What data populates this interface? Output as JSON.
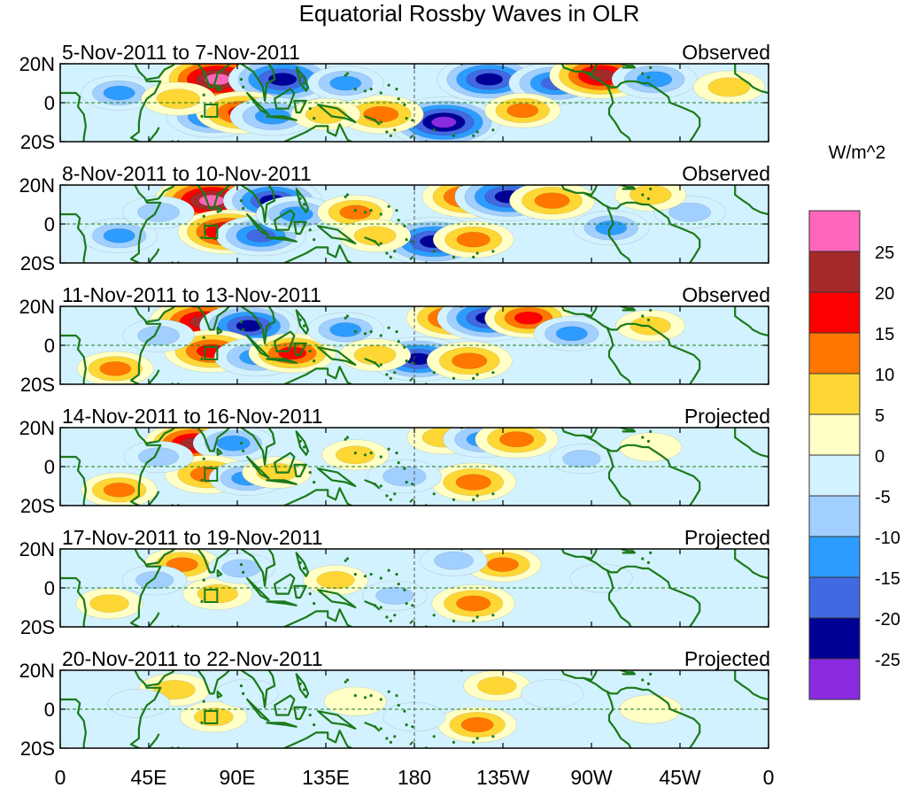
{
  "chart_data": {
    "type": "heatmap",
    "title": "Equatorial Rossby Waves in OLR",
    "colorbar": {
      "title": "W/m^2",
      "tick_labels": [
        "25",
        "20",
        "15",
        "10",
        "5",
        "0",
        "-5",
        "-10",
        "-15",
        "-20",
        "-25"
      ],
      "levels": [
        -25,
        -20,
        -15,
        -10,
        -5,
        0,
        5,
        10,
        15,
        20,
        25
      ],
      "colors_top_to_bottom": [
        "#ff66bb",
        "#a52a2a",
        "#ff0000",
        "#ff7700",
        "#ffd734",
        "#ffffc6",
        "#d3f2ff",
        "#a1cfff",
        "#2d9cff",
        "#4169e1",
        "#000096",
        "#8a2be2"
      ]
    },
    "x_axis": {
      "tick_labels": [
        "0",
        "45E",
        "90E",
        "135E",
        "180",
        "135W",
        "90W",
        "45W",
        "0"
      ],
      "range_deg_east": [
        0,
        360
      ]
    },
    "y_axis": {
      "tick_labels": [
        "20N",
        "0",
        "20S"
      ],
      "range_deg": [
        -20,
        20
      ]
    },
    "panels": [
      {
        "dates": "5-Nov-2011 to 7-Nov-2011",
        "status": "Observed",
        "blobs": [
          {
            "lon": 80,
            "lat": 12,
            "value": 27
          },
          {
            "lon": 113,
            "lat": 12,
            "value": -24
          },
          {
            "lon": 78,
            "lat": -7,
            "value": -18
          },
          {
            "lon": 93,
            "lat": -5,
            "value": 18
          },
          {
            "lon": 108,
            "lat": -7,
            "value": -14
          },
          {
            "lon": 195,
            "lat": -10,
            "value": -26
          },
          {
            "lon": 218,
            "lat": 12,
            "value": -22
          },
          {
            "lon": 252,
            "lat": 10,
            "value": -18
          },
          {
            "lon": 275,
            "lat": 14,
            "value": 22
          },
          {
            "lon": 302,
            "lat": 12,
            "value": -14
          },
          {
            "lon": 163,
            "lat": -6,
            "value": 14
          },
          {
            "lon": 235,
            "lat": -4,
            "value": 10
          },
          {
            "lon": 145,
            "lat": 10,
            "value": -10
          },
          {
            "lon": 30,
            "lat": 5,
            "value": -10
          },
          {
            "lon": 60,
            "lat": 2,
            "value": 9
          },
          {
            "lon": 340,
            "lat": 8,
            "value": 8
          },
          {
            "lon": 135,
            "lat": -6,
            "value": 7
          }
        ]
      },
      {
        "dates": "8-Nov-2011 to 10-Nov-2011",
        "status": "Observed",
        "blobs": [
          {
            "lon": 77,
            "lat": 12,
            "value": 27
          },
          {
            "lon": 108,
            "lat": 12,
            "value": -20
          },
          {
            "lon": 85,
            "lat": -4,
            "value": 20
          },
          {
            "lon": 102,
            "lat": -6,
            "value": -16
          },
          {
            "lon": 120,
            "lat": 5,
            "value": -12
          },
          {
            "lon": 190,
            "lat": -9,
            "value": -24
          },
          {
            "lon": 208,
            "lat": 14,
            "value": 18
          },
          {
            "lon": 228,
            "lat": 14,
            "value": -24
          },
          {
            "lon": 250,
            "lat": 12,
            "value": 14
          },
          {
            "lon": 210,
            "lat": -8,
            "value": 12
          },
          {
            "lon": 150,
            "lat": 6,
            "value": 10
          },
          {
            "lon": 160,
            "lat": -6,
            "value": 8
          },
          {
            "lon": 30,
            "lat": -6,
            "value": -10
          },
          {
            "lon": 50,
            "lat": 6,
            "value": -8
          },
          {
            "lon": 280,
            "lat": -2,
            "value": -10
          },
          {
            "lon": 320,
            "lat": 6,
            "value": -8
          },
          {
            "lon": 300,
            "lat": 15,
            "value": 8
          }
        ]
      },
      {
        "dates": "11-Nov-2011 to 13-Nov-2011",
        "status": "Observed",
        "blobs": [
          {
            "lon": 73,
            "lat": 12,
            "value": 24
          },
          {
            "lon": 96,
            "lat": 10,
            "value": -20
          },
          {
            "lon": 77,
            "lat": -3,
            "value": 18
          },
          {
            "lon": 100,
            "lat": -6,
            "value": -14
          },
          {
            "lon": 118,
            "lat": -4,
            "value": 15
          },
          {
            "lon": 182,
            "lat": -7,
            "value": -20
          },
          {
            "lon": 200,
            "lat": 14,
            "value": 18
          },
          {
            "lon": 218,
            "lat": 14,
            "value": -22
          },
          {
            "lon": 238,
            "lat": 14,
            "value": 15
          },
          {
            "lon": 208,
            "lat": -8,
            "value": 14
          },
          {
            "lon": 145,
            "lat": 8,
            "value": -10
          },
          {
            "lon": 160,
            "lat": -5,
            "value": 8
          },
          {
            "lon": 28,
            "lat": -12,
            "value": 10
          },
          {
            "lon": 50,
            "lat": 5,
            "value": -8
          },
          {
            "lon": 260,
            "lat": 6,
            "value": -10
          },
          {
            "lon": 300,
            "lat": 10,
            "value": 7
          }
        ]
      },
      {
        "dates": "14-Nov-2011 to 16-Nov-2011",
        "status": "Projected",
        "blobs": [
          {
            "lon": 68,
            "lat": 12,
            "value": 20
          },
          {
            "lon": 88,
            "lat": 12,
            "value": -12
          },
          {
            "lon": 75,
            "lat": -4,
            "value": 14
          },
          {
            "lon": 95,
            "lat": -6,
            "value": -10
          },
          {
            "lon": 110,
            "lat": -3,
            "value": 7
          },
          {
            "lon": 210,
            "lat": -8,
            "value": 14
          },
          {
            "lon": 195,
            "lat": 15,
            "value": 9
          },
          {
            "lon": 215,
            "lat": 14,
            "value": -12
          },
          {
            "lon": 232,
            "lat": 14,
            "value": 13
          },
          {
            "lon": 175,
            "lat": -5,
            "value": -9
          },
          {
            "lon": 150,
            "lat": 6,
            "value": 6
          },
          {
            "lon": 30,
            "lat": -12,
            "value": 10
          },
          {
            "lon": 50,
            "lat": 5,
            "value": -7
          },
          {
            "lon": 265,
            "lat": 4,
            "value": -5
          },
          {
            "lon": 300,
            "lat": 10,
            "value": 4
          }
        ]
      },
      {
        "dates": "17-Nov-2011 to 19-Nov-2011",
        "status": "Projected",
        "blobs": [
          {
            "lon": 62,
            "lat": 12,
            "value": 10
          },
          {
            "lon": 80,
            "lat": -3,
            "value": 7
          },
          {
            "lon": 92,
            "lat": 10,
            "value": -6
          },
          {
            "lon": 210,
            "lat": -8,
            "value": 13
          },
          {
            "lon": 225,
            "lat": 12,
            "value": 10
          },
          {
            "lon": 200,
            "lat": 14,
            "value": -6
          },
          {
            "lon": 170,
            "lat": -4,
            "value": -5
          },
          {
            "lon": 25,
            "lat": -8,
            "value": 6
          },
          {
            "lon": 48,
            "lat": 4,
            "value": -5
          },
          {
            "lon": 140,
            "lat": 4,
            "value": 5
          },
          {
            "lon": 275,
            "lat": 5,
            "value": -4
          }
        ]
      },
      {
        "dates": "20-Nov-2011 to 22-Nov-2011",
        "status": "Projected",
        "blobs": [
          {
            "lon": 58,
            "lat": 10,
            "value": 8
          },
          {
            "lon": 78,
            "lat": -4,
            "value": 6
          },
          {
            "lon": 95,
            "lat": 8,
            "value": -4
          },
          {
            "lon": 212,
            "lat": -8,
            "value": 11
          },
          {
            "lon": 222,
            "lat": 12,
            "value": 6
          },
          {
            "lon": 40,
            "lat": 3,
            "value": -4
          },
          {
            "lon": 150,
            "lat": 4,
            "value": 4
          },
          {
            "lon": 180,
            "lat": -4,
            "value": -4
          },
          {
            "lon": 300,
            "lat": 0,
            "value": 4
          },
          {
            "lon": 250,
            "lat": 8,
            "value": -4
          }
        ]
      }
    ]
  }
}
